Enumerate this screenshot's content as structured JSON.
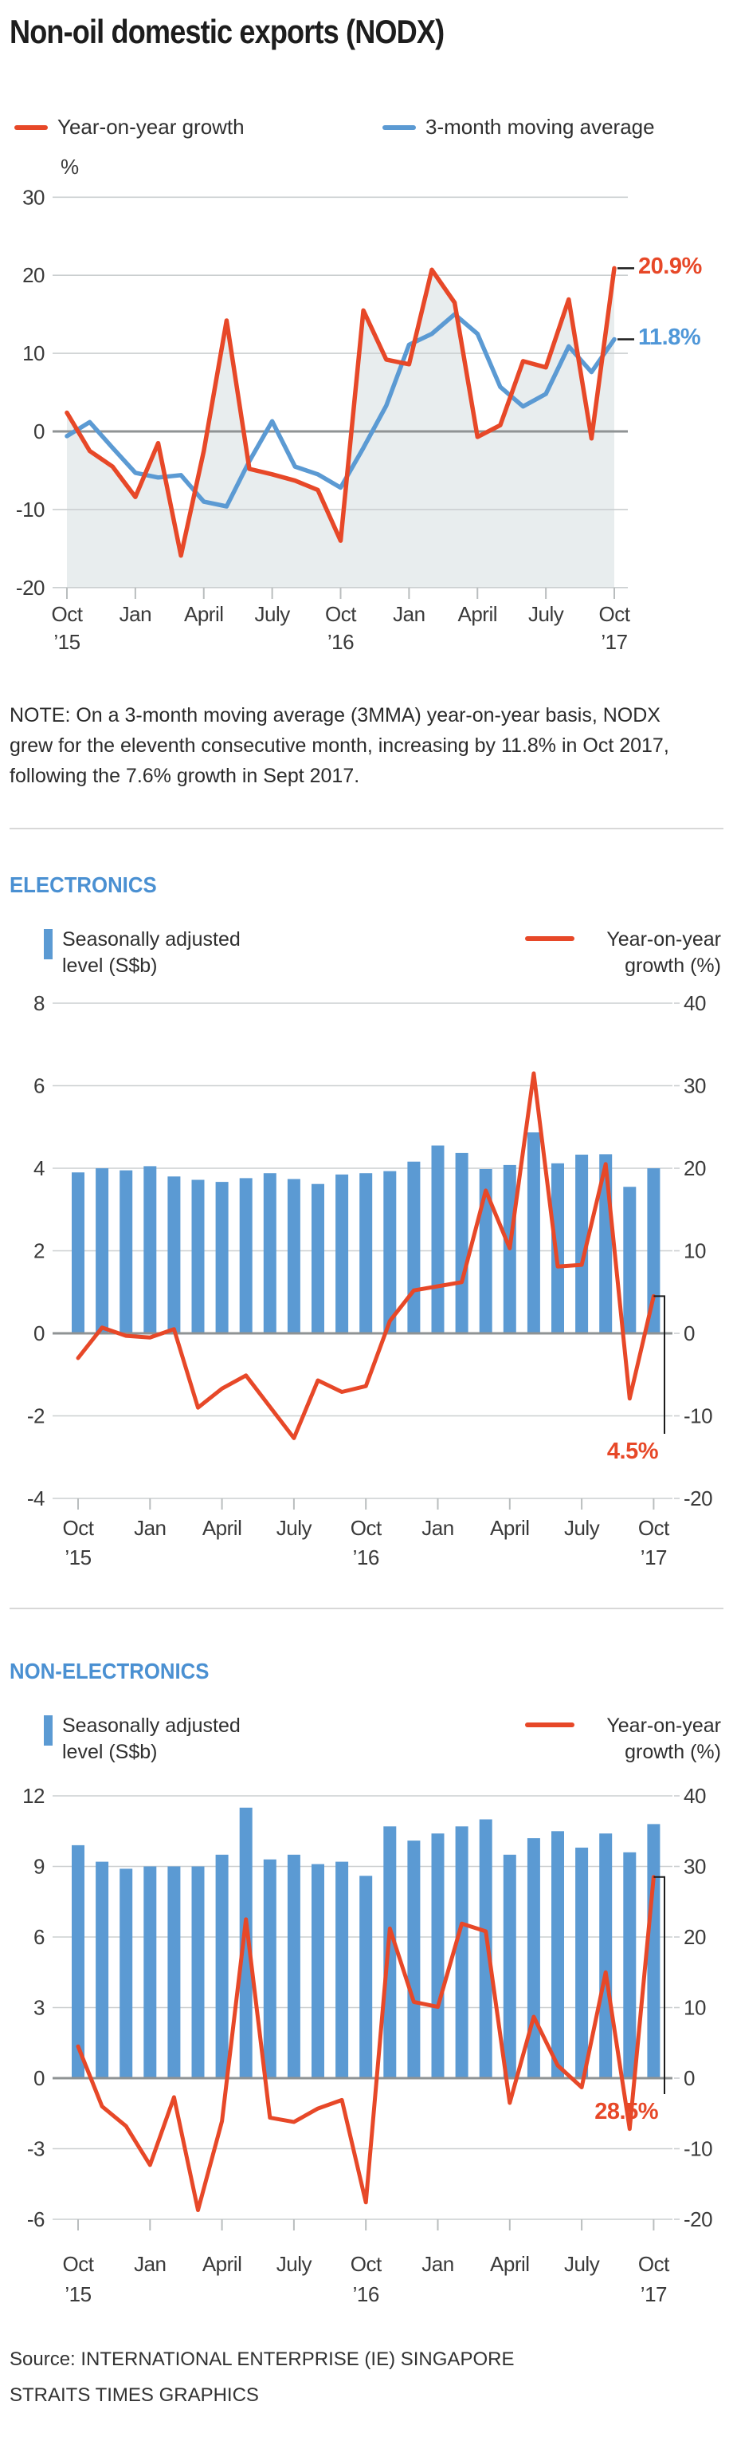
{
  "title": "Non-oil domestic exports (NODX)",
  "note": "NOTE: On a 3-month moving average (3MMA) year-on-year basis, NODX grew for the eleventh consecutive month, increasing by 11.8% in Oct 2017, following the 7.6% growth in Sept 2017.",
  "source": [
    "Source: INTERNATIONAL ENTERPRISE (IE) SINGAPORE",
    "STRAITS TIMES GRAPHICS"
  ],
  "colors": {
    "red_line": "#e74828",
    "blue_line": "#5b9ad3",
    "bar_blue": "#5b9ad3",
    "area_fill": "#e8edee",
    "header_blue": "#4a90d2",
    "grid": "#cbcfd0",
    "zero_line": "#8f9394"
  },
  "chart_data": [
    {
      "id": "nodx-trend",
      "type": "line",
      "title": "Non-oil domestic exports (NODX)",
      "unit": "%",
      "ylim": [
        -20,
        30
      ],
      "yticks": [
        30,
        20,
        10,
        0,
        -10,
        -20
      ],
      "grid": true,
      "legend_position": "top",
      "categories": [
        "Oct '15",
        "Nov '15",
        "Dec '15",
        "Jan '16",
        "Feb '16",
        "Mar '16",
        "Apr '16",
        "May '16",
        "Jun '16",
        "Jul '16",
        "Aug '16",
        "Sep '16",
        "Oct '16",
        "Nov '16",
        "Dec '16",
        "Jan '17",
        "Feb '17",
        "Mar '17",
        "Apr '17",
        "May '17",
        "Jun '17",
        "Jul '17",
        "Aug '17",
        "Sep '17",
        "Oct '17"
      ],
      "x_tick_labels": [
        "Oct",
        "Jan",
        "April",
        "July",
        "Oct",
        "Jan",
        "April",
        "July",
        "Oct"
      ],
      "x_year_labels": [
        "’15",
        "’16",
        "’17"
      ],
      "series": [
        {
          "name": "Year-on-year growth",
          "color": "#e74828",
          "fill": "#e8edee",
          "end_label": "20.9%",
          "values": [
            2.4,
            -2.5,
            -4.5,
            -8.4,
            -1.5,
            -15.9,
            -2.5,
            14.2,
            -4.8,
            -5.5,
            -6.3,
            -7.5,
            -14.0,
            15.5,
            9.2,
            8.6,
            20.7,
            16.5,
            -0.7,
            0.8,
            9.0,
            8.2,
            16.9,
            -0.9,
            20.9
          ]
        },
        {
          "name": "3-month moving average",
          "color": "#5b9ad3",
          "end_label": "11.8%",
          "values": [
            -0.6,
            1.2,
            -2.1,
            -5.3,
            -5.9,
            -5.6,
            -9.0,
            -9.6,
            -3.8,
            1.3,
            -4.5,
            -5.5,
            -7.2,
            -2.1,
            3.3,
            11.1,
            12.5,
            15.0,
            12.5,
            5.7,
            3.2,
            4.8,
            10.9,
            7.6,
            11.8
          ]
        }
      ]
    },
    {
      "id": "electronics",
      "type": "bar+line",
      "title": "ELECTRONICS",
      "left_ylim": [
        -4,
        8
      ],
      "left_yticks": [
        8,
        6,
        4,
        2,
        0,
        -2,
        -4
      ],
      "right_ylim": [
        -20,
        40
      ],
      "right_yticks": [
        40,
        30,
        20,
        10,
        0,
        -10,
        -20
      ],
      "grid": true,
      "categories": [
        "Oct '15",
        "Nov '15",
        "Dec '15",
        "Jan '16",
        "Feb '16",
        "Mar '16",
        "Apr '16",
        "May '16",
        "Jun '16",
        "Jul '16",
        "Aug '16",
        "Sep '16",
        "Oct '16",
        "Nov '16",
        "Dec '16",
        "Jan '17",
        "Feb '17",
        "Mar '17",
        "Apr '17",
        "May '17",
        "Jun '17",
        "Jul '17",
        "Aug '17",
        "Sep '17",
        "Oct '17"
      ],
      "x_tick_labels": [
        "Oct",
        "Jan",
        "April",
        "July",
        "Oct",
        "Jan",
        "April",
        "July",
        "Oct"
      ],
      "x_year_labels": [
        "’15",
        "’16",
        "’17"
      ],
      "bar_series": {
        "name": "Seasonally adjusted level (S$b)",
        "color": "#5b9ad3",
        "values": [
          3.9,
          4.0,
          3.95,
          4.05,
          3.8,
          3.72,
          3.67,
          3.76,
          3.88,
          3.74,
          3.62,
          3.85,
          3.88,
          3.93,
          4.16,
          4.55,
          4.37,
          3.98,
          4.08,
          4.87,
          4.12,
          4.33,
          4.34,
          3.55,
          4.0
        ]
      },
      "line_series": {
        "name": "Year-on-year growth (%)",
        "color": "#e74828",
        "end_label": "4.5%",
        "values": [
          -3.0,
          0.7,
          -0.3,
          -0.5,
          0.5,
          -9.0,
          -6.7,
          -5.1,
          -8.9,
          -12.7,
          -5.7,
          -7.1,
          -6.4,
          1.5,
          5.2,
          5.7,
          6.2,
          17.3,
          10.3,
          31.5,
          8.1,
          8.3,
          20.5,
          -7.9,
          4.5
        ]
      }
    },
    {
      "id": "non-electronics",
      "type": "bar+line",
      "title": "NON-ELECTRONICS",
      "left_ylim": [
        -6,
        12
      ],
      "left_yticks": [
        12,
        9,
        6,
        3,
        0,
        -3,
        -6
      ],
      "right_ylim": [
        -20,
        40
      ],
      "right_yticks": [
        40,
        30,
        20,
        10,
        0,
        -10,
        -20
      ],
      "grid": true,
      "categories": [
        "Oct '15",
        "Nov '15",
        "Dec '15",
        "Jan '16",
        "Feb '16",
        "Mar '16",
        "Apr '16",
        "May '16",
        "Jun '16",
        "Jul '16",
        "Aug '16",
        "Sep '16",
        "Oct '16",
        "Nov '16",
        "Dec '16",
        "Jan '17",
        "Feb '17",
        "Mar '17",
        "Apr '17",
        "May '17",
        "Jun '17",
        "Jul '17",
        "Aug '17",
        "Sep '17",
        "Oct '17"
      ],
      "x_tick_labels": [
        "Oct",
        "Jan",
        "April",
        "July",
        "Oct",
        "Jan",
        "April",
        "July",
        "Oct"
      ],
      "x_year_labels": [
        "’15",
        "’16",
        "’17"
      ],
      "bar_series": {
        "name": "Seasonally adjusted level (S$b)",
        "color": "#5b9ad3",
        "values": [
          9.9,
          9.2,
          8.9,
          9.0,
          9.0,
          9.0,
          9.5,
          11.5,
          9.3,
          9.5,
          9.1,
          9.2,
          8.6,
          10.7,
          10.1,
          10.4,
          10.7,
          11.0,
          9.5,
          10.2,
          10.5,
          9.8,
          10.4,
          9.6,
          10.8
        ]
      },
      "line_series": {
        "name": "Year-on-year growth (%)",
        "color": "#e74828",
        "end_label": "28.5%",
        "values": [
          4.5,
          -4.0,
          -6.8,
          -12.3,
          -2.7,
          -18.7,
          -6.1,
          22.5,
          -5.6,
          -6.2,
          -4.3,
          -3.1,
          -17.6,
          21.2,
          10.8,
          10.1,
          21.9,
          20.8,
          -3.5,
          8.7,
          1.8,
          -1.3,
          15.0,
          -7.2,
          28.5
        ]
      }
    }
  ]
}
